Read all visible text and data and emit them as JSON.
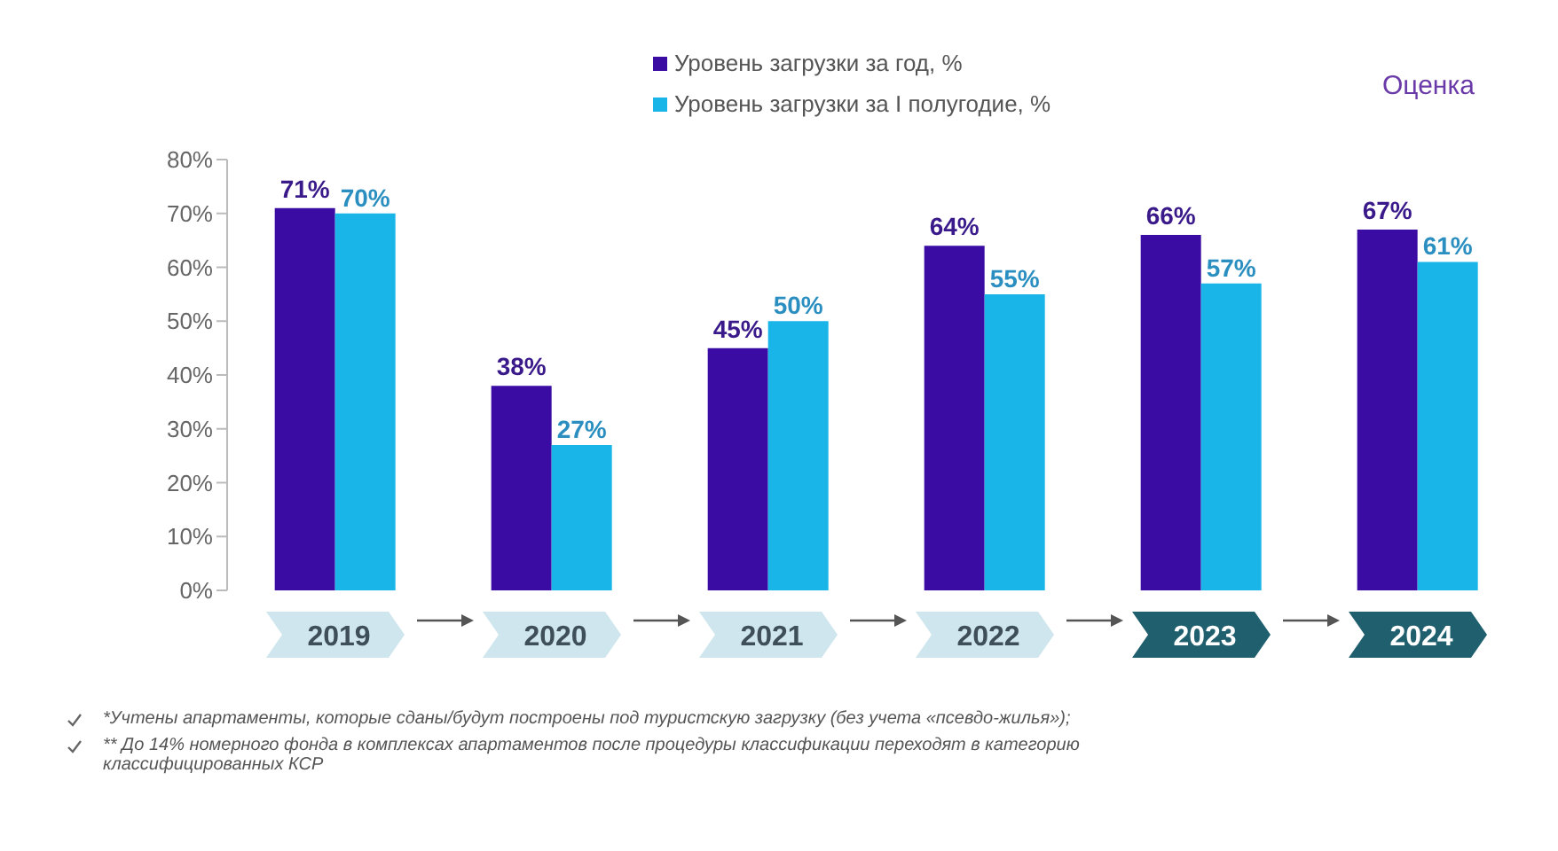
{
  "chart_data": {
    "type": "bar",
    "categories": [
      "2019",
      "2020",
      "2021",
      "2022",
      "2023",
      "2024"
    ],
    "series": [
      {
        "name": "Уровень загрузки за год, %",
        "color": "#3a0ca3",
        "values": [
          71,
          38,
          45,
          64,
          66,
          67
        ],
        "value_labels": [
          "71%",
          "38%",
          "45%",
          "64%",
          "66%",
          "67%"
        ]
      },
      {
        "name": "Уровень загрузки за I полугодие, %",
        "color": "#19b5e8",
        "values": [
          70,
          27,
          50,
          55,
          57,
          61
        ],
        "value_labels": [
          "70%",
          "27%",
          "50%",
          "55%",
          "57%",
          "61%"
        ]
      }
    ],
    "ylim": [
      0,
      80
    ],
    "yticks": [
      {
        "value": 0,
        "label": "0%"
      },
      {
        "value": 10,
        "label": "10%"
      },
      {
        "value": 20,
        "label": "20%"
      },
      {
        "value": 30,
        "label": "30%"
      },
      {
        "value": 40,
        "label": "40%"
      },
      {
        "value": 50,
        "label": "50%"
      },
      {
        "value": 60,
        "label": "60%"
      },
      {
        "value": 70,
        "label": "70%"
      },
      {
        "value": 80,
        "label": "80%"
      }
    ],
    "grid": false,
    "legend": "top",
    "annotations": [
      "Оценка",
      "*Учтены апартаменты, которые сданы/будут построены под туристскую загрузку (без учета «псевдо-жилья»);",
      "** До 14% номерного фонда в комплексах апартаментов после процедуры классификации переходят в категорию классифицированных КСР"
    ]
  }
}
